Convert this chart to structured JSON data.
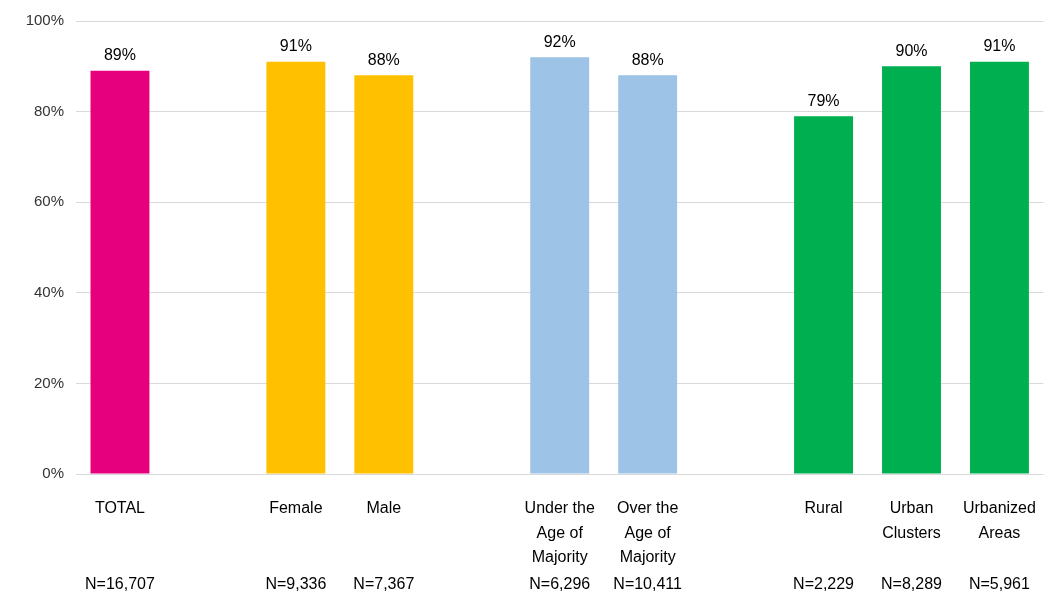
{
  "chart_data": {
    "type": "bar",
    "categories": [
      "TOTAL",
      null,
      "Female",
      "Male",
      null,
      "Under the Age of Majority",
      "Over the Age of Majority",
      null,
      "Rural",
      "Urban Clusters",
      "Urbanized Areas"
    ],
    "values": [
      89,
      null,
      91,
      88,
      null,
      92,
      88,
      null,
      79,
      90,
      91
    ],
    "colors": [
      "#e6007e",
      null,
      "#ffc000",
      "#ffc000",
      null,
      "#9dc3e6",
      "#9dc3e6",
      null,
      "#00b050",
      "#00b050",
      "#00b050"
    ],
    "value_labels": [
      "89%",
      null,
      "91%",
      "88%",
      null,
      "92%",
      "88%",
      null,
      "79%",
      "90%",
      "91%"
    ],
    "ylim": [
      0,
      100
    ],
    "yticks": [
      {
        "value": 0,
        "label": "0%"
      },
      {
        "value": 20,
        "label": "20%"
      },
      {
        "value": 40,
        "label": "40%"
      },
      {
        "value": 60,
        "label": "60%"
      },
      {
        "value": 80,
        "label": "80%"
      },
      {
        "value": 100,
        "label": "100%"
      }
    ],
    "grid": "y",
    "annotations": [
      "N=16,707",
      "N=9,336",
      "N=7,367",
      "N=6,296",
      "N=10,411",
      "N=2,229",
      "N=8,289",
      "N=5,961"
    ]
  }
}
